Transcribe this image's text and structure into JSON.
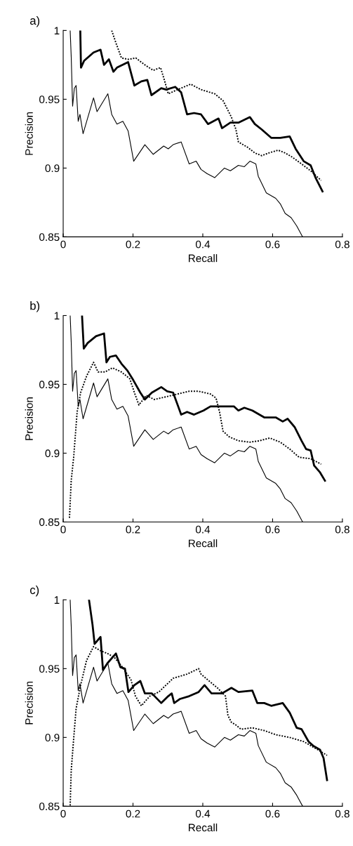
{
  "chart_data": [
    {
      "type": "line",
      "title": "a)",
      "xlabel": "Recall",
      "ylabel": "Precision",
      "xlim": [
        0,
        0.8
      ],
      "ylim": [
        0.85,
        1
      ],
      "xticks": [
        0,
        0.2,
        0.4,
        0.6,
        0.8
      ],
      "yticks": [
        0.85,
        0.9,
        0.95,
        1
      ],
      "grid": false,
      "marker": "none",
      "series": [
        {
          "color": "#000000",
          "line_style": "solid",
          "x": [
            0.02,
            0.023,
            0.027,
            0.032,
            0.037,
            0.043,
            0.048,
            0.057,
            0.087,
            0.097,
            0.128,
            0.139,
            0.154,
            0.171,
            0.186,
            0.202,
            0.234,
            0.258,
            0.288,
            0.301,
            0.315,
            0.338,
            0.361,
            0.381,
            0.395,
            0.412,
            0.434,
            0.462,
            0.479,
            0.502,
            0.519,
            0.535,
            0.552,
            0.559,
            0.582,
            0.609,
            0.622,
            0.636,
            0.653,
            0.669,
            0.686
          ],
          "values": [
            1,
            0.981,
            0.945,
            0.958,
            0.96,
            0.934,
            0.939,
            0.925,
            0.951,
            0.941,
            0.954,
            0.939,
            0.932,
            0.934,
            0.927,
            0.905,
            0.917,
            0.91,
            0.916,
            0.914,
            0.917,
            0.919,
            0.903,
            0.905,
            0.899,
            0.896,
            0.893,
            0.9,
            0.898,
            0.902,
            0.901,
            0.905,
            0.903,
            0.894,
            0.882,
            0.878,
            0.874,
            0.867,
            0.864,
            0.858,
            0.85
          ]
        },
        {
          "color": "#000000",
          "line_style": "solid",
          "x": [
            0.049,
            0.051,
            0.06,
            0.087,
            0.107,
            0.117,
            0.131,
            0.144,
            0.154,
            0.186,
            0.204,
            0.224,
            0.241,
            0.253,
            0.281,
            0.295,
            0.321,
            0.338,
            0.355,
            0.375,
            0.395,
            0.415,
            0.445,
            0.455,
            0.479,
            0.502,
            0.535,
            0.549,
            0.569,
            0.596,
            0.622,
            0.649,
            0.666,
            0.689,
            0.709,
            0.723,
            0.743
          ],
          "values": [
            1,
            0.973,
            0.978,
            0.984,
            0.986,
            0.975,
            0.979,
            0.97,
            0.973,
            0.977,
            0.96,
            0.963,
            0.964,
            0.953,
            0.958,
            0.957,
            0.959,
            0.955,
            0.939,
            0.94,
            0.939,
            0.932,
            0.936,
            0.929,
            0.933,
            0.933,
            0.937,
            0.932,
            0.928,
            0.922,
            0.922,
            0.923,
            0.914,
            0.905,
            0.902,
            0.893,
            0.883
          ]
        },
        {
          "color": "#000000",
          "line_style": "dotted",
          "x": [
            0.139,
            0.151,
            0.167,
            0.187,
            0.208,
            0.234,
            0.258,
            0.279,
            0.291,
            0.301,
            0.328,
            0.365,
            0.395,
            0.434,
            0.458,
            0.482,
            0.495,
            0.502,
            0.529,
            0.549,
            0.569,
            0.589,
            0.616,
            0.636,
            0.656,
            0.683,
            0.709,
            0.739
          ],
          "values": [
            1,
            0.991,
            0.98,
            0.979,
            0.98,
            0.975,
            0.971,
            0.973,
            0.963,
            0.954,
            0.957,
            0.961,
            0.957,
            0.954,
            0.949,
            0.937,
            0.928,
            0.919,
            0.915,
            0.911,
            0.909,
            0.911,
            0.913,
            0.911,
            0.908,
            0.903,
            0.898,
            0.891
          ]
        }
      ]
    },
    {
      "type": "line",
      "title": "b)",
      "xlabel": "Recall",
      "ylabel": "Precision",
      "xlim": [
        0,
        0.8
      ],
      "ylim": [
        0.85,
        1
      ],
      "xticks": [
        0,
        0.2,
        0.4,
        0.6,
        0.8
      ],
      "yticks": [
        0.85,
        0.9,
        0.95,
        1
      ],
      "grid": false,
      "marker": "none",
      "series": [
        {
          "color": "#000000",
          "line_style": "solid",
          "x": [
            0.02,
            0.023,
            0.027,
            0.032,
            0.037,
            0.043,
            0.048,
            0.057,
            0.087,
            0.097,
            0.128,
            0.139,
            0.154,
            0.171,
            0.186,
            0.202,
            0.234,
            0.258,
            0.288,
            0.301,
            0.315,
            0.338,
            0.361,
            0.381,
            0.395,
            0.412,
            0.434,
            0.462,
            0.479,
            0.502,
            0.519,
            0.535,
            0.552,
            0.559,
            0.582,
            0.609,
            0.622,
            0.636,
            0.653,
            0.669,
            0.686
          ],
          "values": [
            1,
            0.981,
            0.945,
            0.958,
            0.96,
            0.934,
            0.939,
            0.925,
            0.951,
            0.941,
            0.954,
            0.939,
            0.932,
            0.934,
            0.927,
            0.905,
            0.917,
            0.91,
            0.916,
            0.914,
            0.917,
            0.919,
            0.903,
            0.905,
            0.899,
            0.896,
            0.893,
            0.9,
            0.898,
            0.902,
            0.901,
            0.905,
            0.903,
            0.894,
            0.882,
            0.878,
            0.874,
            0.867,
            0.864,
            0.858,
            0.85
          ]
        },
        {
          "color": "#000000",
          "line_style": "solid",
          "x": [
            0.054,
            0.059,
            0.07,
            0.094,
            0.117,
            0.124,
            0.134,
            0.151,
            0.167,
            0.184,
            0.201,
            0.221,
            0.234,
            0.254,
            0.281,
            0.298,
            0.315,
            0.328,
            0.338,
            0.355,
            0.375,
            0.402,
            0.422,
            0.455,
            0.489,
            0.502,
            0.519,
            0.542,
            0.576,
            0.609,
            0.629,
            0.643,
            0.663,
            0.683,
            0.696,
            0.709,
            0.719,
            0.736,
            0.75
          ],
          "values": [
            1,
            0.976,
            0.98,
            0.985,
            0.987,
            0.966,
            0.97,
            0.971,
            0.965,
            0.96,
            0.953,
            0.944,
            0.939,
            0.944,
            0.948,
            0.945,
            0.944,
            0.935,
            0.928,
            0.93,
            0.928,
            0.931,
            0.934,
            0.934,
            0.934,
            0.931,
            0.933,
            0.931,
            0.926,
            0.926,
            0.923,
            0.925,
            0.919,
            0.909,
            0.903,
            0.902,
            0.891,
            0.886,
            0.88
          ]
        },
        {
          "color": "#000000",
          "line_style": "dotted",
          "x": [
            0.018,
            0.023,
            0.03,
            0.04,
            0.05,
            0.067,
            0.087,
            0.1,
            0.12,
            0.141,
            0.167,
            0.191,
            0.204,
            0.217,
            0.238,
            0.261,
            0.295,
            0.328,
            0.361,
            0.388,
            0.422,
            0.438,
            0.448,
            0.458,
            0.475,
            0.502,
            0.535,
            0.562,
            0.592,
            0.622,
            0.649,
            0.676,
            0.709,
            0.739
          ],
          "values": [
            0.853,
            0.88,
            0.897,
            0.93,
            0.944,
            0.956,
            0.966,
            0.959,
            0.959,
            0.962,
            0.959,
            0.954,
            0.944,
            0.935,
            0.942,
            0.939,
            0.941,
            0.943,
            0.945,
            0.945,
            0.943,
            0.94,
            0.93,
            0.916,
            0.912,
            0.909,
            0.908,
            0.909,
            0.911,
            0.908,
            0.903,
            0.897,
            0.896,
            0.892
          ]
        }
      ]
    },
    {
      "type": "line",
      "title": "c)",
      "xlabel": "Recall",
      "ylabel": "Precision",
      "xlim": [
        0,
        0.8
      ],
      "ylim": [
        0.85,
        1
      ],
      "xticks": [
        0,
        0.2,
        0.4,
        0.6,
        0.8
      ],
      "yticks": [
        0.85,
        0.9,
        0.95,
        1
      ],
      "grid": false,
      "marker": "none",
      "series": [
        {
          "color": "#000000",
          "line_style": "solid",
          "x": [
            0.02,
            0.023,
            0.027,
            0.032,
            0.037,
            0.043,
            0.048,
            0.057,
            0.087,
            0.097,
            0.128,
            0.139,
            0.154,
            0.171,
            0.186,
            0.202,
            0.234,
            0.258,
            0.288,
            0.301,
            0.315,
            0.338,
            0.361,
            0.381,
            0.395,
            0.412,
            0.434,
            0.462,
            0.479,
            0.502,
            0.519,
            0.535,
            0.552,
            0.559,
            0.582,
            0.609,
            0.622,
            0.636,
            0.653,
            0.669,
            0.686
          ],
          "values": [
            1,
            0.981,
            0.945,
            0.958,
            0.96,
            0.934,
            0.939,
            0.925,
            0.951,
            0.941,
            0.954,
            0.939,
            0.932,
            0.934,
            0.927,
            0.905,
            0.917,
            0.91,
            0.916,
            0.914,
            0.917,
            0.919,
            0.903,
            0.905,
            0.899,
            0.896,
            0.893,
            0.9,
            0.898,
            0.902,
            0.901,
            0.905,
            0.903,
            0.894,
            0.882,
            0.878,
            0.874,
            0.867,
            0.864,
            0.858,
            0.85
          ]
        },
        {
          "color": "#000000",
          "line_style": "solid",
          "x": [
            0.074,
            0.084,
            0.09,
            0.107,
            0.114,
            0.127,
            0.151,
            0.164,
            0.177,
            0.187,
            0.204,
            0.221,
            0.234,
            0.254,
            0.281,
            0.301,
            0.311,
            0.318,
            0.335,
            0.361,
            0.388,
            0.405,
            0.425,
            0.442,
            0.455,
            0.482,
            0.502,
            0.542,
            0.556,
            0.576,
            0.596,
            0.629,
            0.649,
            0.669,
            0.683,
            0.703,
            0.716,
            0.736,
            0.746,
            0.756
          ],
          "values": [
            1,
            0.982,
            0.968,
            0.973,
            0.949,
            0.954,
            0.961,
            0.951,
            0.95,
            0.933,
            0.938,
            0.941,
            0.932,
            0.932,
            0.925,
            0.93,
            0.932,
            0.925,
            0.928,
            0.93,
            0.933,
            0.938,
            0.932,
            0.932,
            0.932,
            0.936,
            0.933,
            0.934,
            0.925,
            0.925,
            0.923,
            0.925,
            0.918,
            0.907,
            0.906,
            0.897,
            0.894,
            0.891,
            0.885,
            0.869
          ]
        },
        {
          "color": "#000000",
          "line_style": "dotted",
          "x": [
            0.02,
            0.023,
            0.03,
            0.037,
            0.05,
            0.067,
            0.087,
            0.107,
            0.127,
            0.147,
            0.167,
            0.194,
            0.207,
            0.224,
            0.248,
            0.274,
            0.315,
            0.355,
            0.388,
            0.395,
            0.442,
            0.465,
            0.472,
            0.482,
            0.495,
            0.509,
            0.542,
            0.576,
            0.609,
            0.649,
            0.689,
            0.723,
            0.756
          ],
          "values": [
            0.8505,
            0.876,
            0.899,
            0.921,
            0.938,
            0.956,
            0.966,
            0.963,
            0.961,
            0.958,
            0.952,
            0.942,
            0.93,
            0.923,
            0.93,
            0.933,
            0.943,
            0.946,
            0.95,
            0.946,
            0.936,
            0.93,
            0.916,
            0.911,
            0.909,
            0.906,
            0.907,
            0.905,
            0.902,
            0.9,
            0.897,
            0.892,
            0.887
          ]
        }
      ]
    }
  ]
}
